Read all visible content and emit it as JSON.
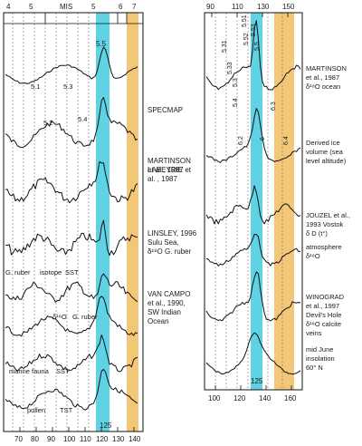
{
  "colors": {
    "cyan_band": "#5fd3e4",
    "orange_band": "#f2c878",
    "line": "#111111"
  },
  "chart_data": [
    {
      "type": "line",
      "panel": "left",
      "x_axis_ticks": [
        "70",
        "80",
        "90",
        "100",
        "110",
        "120",
        "130",
        "140"
      ],
      "top_labels": [
        "4",
        "5",
        "MIS",
        "5",
        "6",
        "7"
      ],
      "highlight_labels": [
        "5.5",
        "125"
      ],
      "curve_labels": [
        "5.1",
        "5.3",
        "5.2",
        "5.4",
        "G. ruber",
        "isotope",
        "SST",
        "δ¹⁸O",
        "G. ruber",
        "marine fauna",
        "SST",
        "pollen",
        "TST"
      ],
      "series": [
        {
          "name": "SPECMAP",
          "lines": [
            "SPECMAP"
          ]
        },
        {
          "name": "MARTINSON et al., 1987",
          "lines": [
            "MARTINSON",
            "et al., 1987"
          ]
        },
        {
          "name": "LABEYRIE et al., 1987",
          "lines": [
            "LABEYRIE et",
            "al. , 1987"
          ]
        },
        {
          "name": "LINSLEY, 1996 Sulu Sea, δ18O G. ruber",
          "lines": [
            "LINSLEY, 1996",
            "Sulu Sea,",
            "δ¹⁸O  G. ruber"
          ]
        },
        {
          "name": "VAN CAMPO et al., 1990, SW Indian Ocean",
          "lines": [
            "VAN CAMPO",
            "et al., 1990,",
            "SW Indian",
            "Ocean"
          ]
        }
      ]
    },
    {
      "type": "line",
      "panel": "right",
      "x_axis_ticks": [
        "100",
        "120",
        "140",
        "160"
      ],
      "top_ticks": [
        "90",
        "110",
        "130",
        "150"
      ],
      "highlight_labels": [
        "125"
      ],
      "curve_labels": [
        "5.31",
        "5.33",
        "5.3",
        "5.4",
        "5.51",
        "5.53",
        "5.52",
        "5.5",
        "6",
        "6.2",
        "6.3",
        "6.4"
      ],
      "series": [
        {
          "name": "MARTINSON et al., 1987 δ18O ocean",
          "lines": [
            "MARTINSON",
            "et al., 1987",
            "δ¹⁸O  ocean"
          ]
        },
        {
          "name": "Derived ice volume (sea level altitude)",
          "lines": [
            "Derived ice",
            "volume (sea",
            "level altitude)"
          ]
        },
        {
          "name": "JOUZEL et al., 1993 Vostok δD (t°)",
          "lines": [
            "JOUZEL et al.,",
            "1993  Vostok",
            "δ D  (t°)"
          ]
        },
        {
          "name": "atmosphere δ18O",
          "lines": [
            "atmosphere",
            "δ¹⁸O"
          ]
        },
        {
          "name": "WINOGRAD et al., 1997 Devil's Hole δ18O calcite veins",
          "lines": [
            "WINOGRAD",
            "et al., 1997",
            "Devil's Hole",
            "δ¹⁸O calcite",
            "veins"
          ]
        },
        {
          "name": "mid June insolation 60° N",
          "lines": [
            "mid June",
            "insolation",
            "60° N"
          ]
        }
      ]
    }
  ]
}
